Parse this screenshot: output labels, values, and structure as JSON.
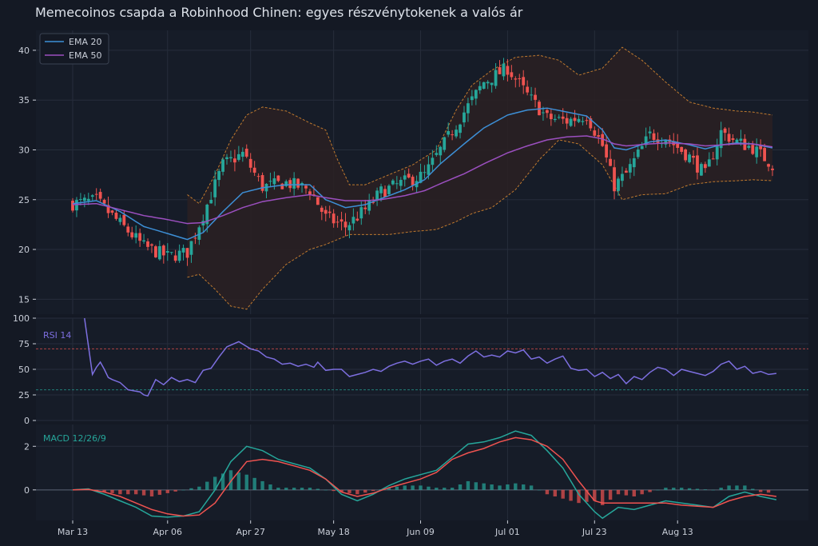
{
  "title": "Memecoinos csapda a Robinhood Chinen: egyes részvénytokenek a valós ár",
  "colors": {
    "background": "#141924",
    "panel": "#161c28",
    "grid": "#262d3b",
    "text": "#c9ced8",
    "up": "#26a69a",
    "down": "#ef5350",
    "ema20": "#3d8fd6",
    "ema50": "#9b4fbf",
    "bollinger": "#c07a2f",
    "rsi": "#7d6fe0",
    "macd": "#26a69a",
    "signal": "#ef5350"
  },
  "chart_data": [
    {
      "type": "candlestick",
      "panel": "price",
      "title": "Memecoinos csapda a Robinhood Chinen: egyes részvénytokenek a valós ár",
      "ylim": [
        13.5,
        42
      ],
      "yticks": [
        15,
        20,
        25,
        30,
        35,
        40
      ],
      "xticks": [
        {
          "index": 0,
          "label": "Mar 13"
        },
        {
          "index": 24,
          "label": "Apr 06"
        },
        {
          "index": 45,
          "label": "Apr 27"
        },
        {
          "index": 66,
          "label": "May 18"
        },
        {
          "index": 88,
          "label": "Jun 09"
        },
        {
          "index": 110,
          "label": "Jul 01"
        },
        {
          "index": 132,
          "label": "Jul 23"
        },
        {
          "index": 153,
          "label": "Aug 13"
        }
      ],
      "n_days": 178,
      "grid": true,
      "legend": {
        "position": "top-left",
        "entries": [
          "EMA 20",
          "EMA 50"
        ]
      },
      "close_path": [
        [
          0,
          24.6
        ],
        [
          6,
          24.9
        ],
        [
          12,
          22.6
        ],
        [
          18,
          20.3
        ],
        [
          24,
          19.3
        ],
        [
          29,
          19.7
        ],
        [
          33,
          23.5
        ],
        [
          38,
          28.5
        ],
        [
          43,
          29.6
        ],
        [
          48,
          26.3
        ],
        [
          54,
          26.7
        ],
        [
          60,
          26.0
        ],
        [
          64,
          23.2
        ],
        [
          69,
          22.3
        ],
        [
          74,
          24.0
        ],
        [
          78,
          25.8
        ],
        [
          84,
          26.8
        ],
        [
          89,
          27.5
        ],
        [
          93,
          30.0
        ],
        [
          99,
          33.8
        ],
        [
          104,
          36.8
        ],
        [
          110,
          38.2
        ],
        [
          115,
          35.5
        ],
        [
          120,
          33.2
        ],
        [
          125,
          32.9
        ],
        [
          130,
          33.5
        ],
        [
          134,
          30.4
        ],
        [
          137,
          26.4
        ],
        [
          140,
          27.6
        ],
        [
          146,
          31.5
        ],
        [
          150,
          31.2
        ],
        [
          156,
          29.3
        ],
        [
          160,
          27.5
        ],
        [
          164,
          31.8
        ],
        [
          168,
          30.8
        ],
        [
          172,
          30.2
        ],
        [
          177,
          28.5
        ]
      ],
      "ema20_path": [
        [
          0,
          24.6
        ],
        [
          6,
          24.9
        ],
        [
          12,
          23.8
        ],
        [
          18,
          22.3
        ],
        [
          24,
          21.6
        ],
        [
          29,
          21.0
        ],
        [
          33,
          21.7
        ],
        [
          38,
          23.8
        ],
        [
          43,
          25.7
        ],
        [
          48,
          26.2
        ],
        [
          54,
          26.5
        ],
        [
          60,
          26.5
        ],
        [
          64,
          25.0
        ],
        [
          69,
          24.2
        ],
        [
          74,
          24.5
        ],
        [
          78,
          25.1
        ],
        [
          84,
          26.0
        ],
        [
          89,
          27.0
        ],
        [
          93,
          28.6
        ],
        [
          99,
          30.6
        ],
        [
          104,
          32.2
        ],
        [
          110,
          33.5
        ],
        [
          115,
          34.0
        ],
        [
          120,
          34.2
        ],
        [
          125,
          33.8
        ],
        [
          130,
          33.4
        ],
        [
          134,
          32.0
        ],
        [
          137,
          30.2
        ],
        [
          140,
          30.0
        ],
        [
          146,
          30.8
        ],
        [
          150,
          31.0
        ],
        [
          156,
          30.5
        ],
        [
          160,
          30.1
        ],
        [
          164,
          30.5
        ],
        [
          168,
          30.7
        ],
        [
          172,
          30.6
        ],
        [
          177,
          30.2
        ]
      ],
      "ema50_path": [
        [
          0,
          24.5
        ],
        [
          6,
          24.6
        ],
        [
          12,
          24.0
        ],
        [
          18,
          23.4
        ],
        [
          24,
          23.0
        ],
        [
          29,
          22.6
        ],
        [
          33,
          22.7
        ],
        [
          38,
          23.4
        ],
        [
          43,
          24.2
        ],
        [
          48,
          24.8
        ],
        [
          54,
          25.2
        ],
        [
          60,
          25.5
        ],
        [
          64,
          25.2
        ],
        [
          69,
          24.9
        ],
        [
          74,
          24.9
        ],
        [
          78,
          25.0
        ],
        [
          84,
          25.4
        ],
        [
          89,
          25.9
        ],
        [
          93,
          26.6
        ],
        [
          99,
          27.6
        ],
        [
          104,
          28.6
        ],
        [
          110,
          29.7
        ],
        [
          115,
          30.4
        ],
        [
          120,
          31.0
        ],
        [
          125,
          31.3
        ],
        [
          130,
          31.4
        ],
        [
          134,
          31.1
        ],
        [
          137,
          30.6
        ],
        [
          140,
          30.4
        ],
        [
          146,
          30.6
        ],
        [
          150,
          30.7
        ],
        [
          156,
          30.6
        ],
        [
          160,
          30.4
        ],
        [
          164,
          30.5
        ],
        [
          168,
          30.6
        ],
        [
          172,
          30.6
        ],
        [
          177,
          30.3
        ]
      ],
      "bollinger_upper": [
        [
          29,
          25.5
        ],
        [
          32,
          24.6
        ],
        [
          36,
          27.5
        ],
        [
          40,
          31.0
        ],
        [
          44,
          33.5
        ],
        [
          48,
          34.3
        ],
        [
          54,
          33.9
        ],
        [
          60,
          32.7
        ],
        [
          64,
          32.0
        ],
        [
          67,
          29.0
        ],
        [
          70,
          26.5
        ],
        [
          74,
          26.5
        ],
        [
          80,
          27.5
        ],
        [
          86,
          28.5
        ],
        [
          92,
          30.0
        ],
        [
          97,
          34.0
        ],
        [
          101,
          36.5
        ],
        [
          106,
          38.0
        ],
        [
          112,
          39.3
        ],
        [
          118,
          39.5
        ],
        [
          123,
          39.0
        ],
        [
          128,
          37.5
        ],
        [
          134,
          38.2
        ],
        [
          139,
          40.3
        ],
        [
          144,
          39.0
        ],
        [
          150,
          36.8
        ],
        [
          156,
          34.8
        ],
        [
          162,
          34.2
        ],
        [
          168,
          33.9
        ],
        [
          172,
          33.8
        ],
        [
          177,
          33.5
        ]
      ],
      "bollinger_lower": [
        [
          29,
          17.2
        ],
        [
          32,
          17.5
        ],
        [
          36,
          16.0
        ],
        [
          40,
          14.3
        ],
        [
          44,
          14.0
        ],
        [
          48,
          16.0
        ],
        [
          54,
          18.5
        ],
        [
          60,
          20.0
        ],
        [
          64,
          20.5
        ],
        [
          67,
          21.0
        ],
        [
          70,
          21.5
        ],
        [
          74,
          21.5
        ],
        [
          80,
          21.5
        ],
        [
          86,
          21.8
        ],
        [
          92,
          22.0
        ],
        [
          97,
          22.8
        ],
        [
          101,
          23.6
        ],
        [
          106,
          24.2
        ],
        [
          112,
          26.0
        ],
        [
          118,
          29.0
        ],
        [
          123,
          31.0
        ],
        [
          128,
          30.6
        ],
        [
          134,
          28.5
        ],
        [
          139,
          25.0
        ],
        [
          144,
          25.5
        ],
        [
          150,
          25.6
        ],
        [
          156,
          26.5
        ],
        [
          162,
          26.8
        ],
        [
          168,
          26.9
        ],
        [
          172,
          27.0
        ],
        [
          177,
          26.9
        ]
      ]
    },
    {
      "type": "line",
      "panel": "rsi",
      "label": "RSI 14",
      "ylim": [
        0,
        100
      ],
      "yticks": [
        0,
        25,
        50,
        75,
        100
      ],
      "overbought": 70,
      "oversold": 30,
      "path": [
        [
          3,
          100
        ],
        [
          5,
          45
        ],
        [
          6,
          52
        ],
        [
          7,
          57
        ],
        [
          8,
          50
        ],
        [
          9,
          42
        ],
        [
          10,
          40
        ],
        [
          12,
          37
        ],
        [
          14,
          30
        ],
        [
          17,
          28
        ],
        [
          18,
          25
        ],
        [
          19,
          24
        ],
        [
          20,
          32
        ],
        [
          21,
          40
        ],
        [
          23,
          35
        ],
        [
          25,
          42
        ],
        [
          27,
          38
        ],
        [
          29,
          40
        ],
        [
          31,
          37
        ],
        [
          33,
          49
        ],
        [
          35,
          51
        ],
        [
          37,
          62
        ],
        [
          39,
          72
        ],
        [
          42,
          77
        ],
        [
          45,
          70
        ],
        [
          47,
          68
        ],
        [
          49,
          62
        ],
        [
          51,
          60
        ],
        [
          53,
          55
        ],
        [
          55,
          56
        ],
        [
          57,
          53
        ],
        [
          59,
          55
        ],
        [
          61,
          52
        ],
        [
          62,
          57
        ],
        [
          64,
          49
        ],
        [
          66,
          50
        ],
        [
          68,
          50
        ],
        [
          70,
          43
        ],
        [
          72,
          45
        ],
        [
          74,
          47
        ],
        [
          76,
          50
        ],
        [
          78,
          48
        ],
        [
          80,
          53
        ],
        [
          82,
          56
        ],
        [
          84,
          58
        ],
        [
          86,
          55
        ],
        [
          88,
          58
        ],
        [
          90,
          60
        ],
        [
          92,
          54
        ],
        [
          94,
          58
        ],
        [
          96,
          60
        ],
        [
          98,
          56
        ],
        [
          100,
          63
        ],
        [
          102,
          68
        ],
        [
          104,
          62
        ],
        [
          106,
          64
        ],
        [
          108,
          62
        ],
        [
          110,
          68
        ],
        [
          112,
          66
        ],
        [
          114,
          69
        ],
        [
          116,
          60
        ],
        [
          118,
          62
        ],
        [
          120,
          56
        ],
        [
          122,
          60
        ],
        [
          124,
          63
        ],
        [
          126,
          51
        ],
        [
          128,
          49
        ],
        [
          130,
          50
        ],
        [
          132,
          43
        ],
        [
          134,
          47
        ],
        [
          136,
          41
        ],
        [
          138,
          45
        ],
        [
          140,
          36
        ],
        [
          142,
          43
        ],
        [
          144,
          40
        ],
        [
          146,
          47
        ],
        [
          148,
          52
        ],
        [
          150,
          50
        ],
        [
          152,
          44
        ],
        [
          154,
          50
        ],
        [
          156,
          48
        ],
        [
          158,
          46
        ],
        [
          160,
          44
        ],
        [
          162,
          48
        ],
        [
          164,
          55
        ],
        [
          166,
          58
        ],
        [
          168,
          50
        ],
        [
          170,
          53
        ],
        [
          172,
          46
        ],
        [
          174,
          48
        ],
        [
          176,
          45
        ],
        [
          178,
          46
        ]
      ]
    },
    {
      "type": "bar+line",
      "panel": "macd",
      "label": "MACD 12/26/9",
      "ylim": [
        -1.4,
        3.0
      ],
      "yticks": [
        0,
        2
      ],
      "macd_path": [
        [
          0,
          0.0
        ],
        [
          4,
          0.05
        ],
        [
          8,
          -0.2
        ],
        [
          12,
          -0.5
        ],
        [
          16,
          -0.8
        ],
        [
          20,
          -1.2
        ],
        [
          24,
          -1.25
        ],
        [
          28,
          -1.2
        ],
        [
          32,
          -1.0
        ],
        [
          36,
          0.0
        ],
        [
          40,
          1.3
        ],
        [
          44,
          2.0
        ],
        [
          48,
          1.8
        ],
        [
          52,
          1.4
        ],
        [
          56,
          1.2
        ],
        [
          60,
          1.0
        ],
        [
          64,
          0.5
        ],
        [
          68,
          -0.2
        ],
        [
          72,
          -0.5
        ],
        [
          76,
          -0.2
        ],
        [
          80,
          0.2
        ],
        [
          84,
          0.5
        ],
        [
          88,
          0.7
        ],
        [
          92,
          0.9
        ],
        [
          96,
          1.5
        ],
        [
          100,
          2.1
        ],
        [
          104,
          2.2
        ],
        [
          108,
          2.4
        ],
        [
          112,
          2.7
        ],
        [
          116,
          2.5
        ],
        [
          120,
          1.8
        ],
        [
          124,
          1.0
        ],
        [
          128,
          -0.2
        ],
        [
          132,
          -1.0
        ],
        [
          134,
          -1.3
        ],
        [
          138,
          -0.8
        ],
        [
          142,
          -0.9
        ],
        [
          146,
          -0.7
        ],
        [
          150,
          -0.5
        ],
        [
          154,
          -0.6
        ],
        [
          158,
          -0.7
        ],
        [
          162,
          -0.8
        ],
        [
          166,
          -0.3
        ],
        [
          170,
          -0.1
        ],
        [
          174,
          -0.3
        ],
        [
          178,
          -0.45
        ]
      ],
      "signal_path": [
        [
          0,
          0.0
        ],
        [
          4,
          0.02
        ],
        [
          8,
          -0.1
        ],
        [
          12,
          -0.3
        ],
        [
          16,
          -0.6
        ],
        [
          20,
          -0.9
        ],
        [
          24,
          -1.1
        ],
        [
          28,
          -1.2
        ],
        [
          32,
          -1.15
        ],
        [
          36,
          -0.6
        ],
        [
          40,
          0.4
        ],
        [
          44,
          1.3
        ],
        [
          48,
          1.4
        ],
        [
          52,
          1.3
        ],
        [
          56,
          1.1
        ],
        [
          60,
          0.9
        ],
        [
          64,
          0.5
        ],
        [
          68,
          -0.1
        ],
        [
          72,
          -0.3
        ],
        [
          76,
          -0.15
        ],
        [
          80,
          0.1
        ],
        [
          84,
          0.3
        ],
        [
          88,
          0.5
        ],
        [
          92,
          0.8
        ],
        [
          96,
          1.4
        ],
        [
          100,
          1.7
        ],
        [
          104,
          1.9
        ],
        [
          108,
          2.2
        ],
        [
          112,
          2.4
        ],
        [
          116,
          2.3
        ],
        [
          120,
          2.0
        ],
        [
          124,
          1.4
        ],
        [
          128,
          0.4
        ],
        [
          132,
          -0.5
        ],
        [
          134,
          -0.6
        ],
        [
          138,
          -0.6
        ],
        [
          142,
          -0.6
        ],
        [
          146,
          -0.6
        ],
        [
          150,
          -0.6
        ],
        [
          154,
          -0.7
        ],
        [
          158,
          -0.75
        ],
        [
          162,
          -0.8
        ],
        [
          166,
          -0.5
        ],
        [
          170,
          -0.3
        ],
        [
          174,
          -0.2
        ],
        [
          178,
          -0.3
        ]
      ]
    }
  ]
}
